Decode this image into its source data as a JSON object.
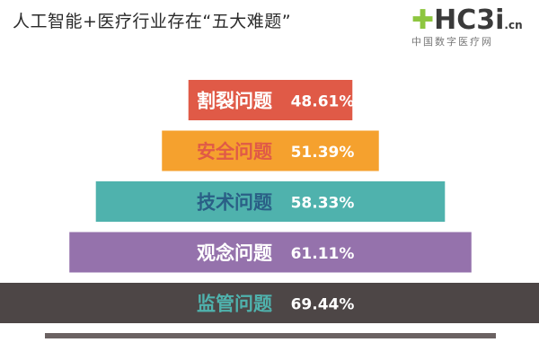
{
  "title": "人工智能+医疗行业存在“五大难题”",
  "logo": {
    "mark": "HC3i",
    "domain": ".cn",
    "subtitle": "中国数字医疗网",
    "plus_color": "#8dc63f"
  },
  "chart_data": {
    "type": "bar",
    "orientation": "horizontal-funnel",
    "categories": [
      "割裂问题",
      "安全问题",
      "技术问题",
      "观念问题",
      "监管问题"
    ],
    "values": [
      48.61,
      51.39,
      58.33,
      61.11,
      69.44
    ],
    "value_labels": [
      "48.61%",
      "51.39%",
      "58.33%",
      "61.11%",
      "69.44%"
    ],
    "colors": [
      "#e05a47",
      "#f5a12e",
      "#4fb2ad",
      "#9572ac",
      "#4d4646"
    ],
    "category_label_colors": [
      "#ffffff",
      "#e05a47",
      "#2a5f86",
      "#ffffff",
      "#4fb2ad"
    ],
    "value_label_color": "#ffffff",
    "baseline_color": "#6b6262",
    "xlim": [
      0,
      100
    ]
  }
}
